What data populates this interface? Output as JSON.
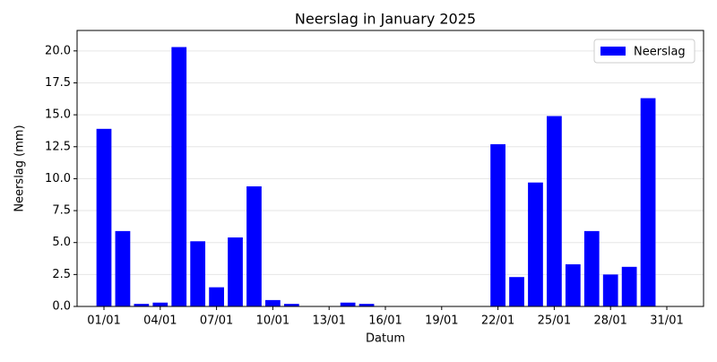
{
  "chart_data": {
    "type": "bar",
    "title": "Neerslag in January 2025",
    "x_label": "Datum",
    "y_label": "Neerslag (mm)",
    "categories": [
      "01/01",
      null,
      null,
      "04/01",
      null,
      null,
      "07/01",
      null,
      null,
      "10/01",
      null,
      null,
      "13/01",
      null,
      null,
      "16/01",
      null,
      null,
      "19/01",
      null,
      null,
      "22/01",
      null,
      null,
      "25/01",
      null,
      null,
      "28/01",
      null,
      null,
      "31/01"
    ],
    "series": [
      {
        "name": "Neerslag",
        "color": "#0000ff",
        "values": [
          13.9,
          5.9,
          0.2,
          0.3,
          20.3,
          5.1,
          1.5,
          5.4,
          9.4,
          0.5,
          0.2,
          0,
          0,
          0.3,
          0.2,
          0,
          0,
          0,
          0,
          0,
          0,
          12.7,
          2.3,
          9.7,
          14.9,
          3.3,
          5.9,
          2.5,
          3.1,
          16.3,
          0
        ]
      }
    ],
    "ylim": [
      0,
      21.6
    ],
    "yticks": [
      {
        "value": 0,
        "label": "0.0"
      },
      2.5,
      {
        "value": 5,
        "label": "5.0"
      },
      7.5,
      {
        "value": 10,
        "label": "10.0"
      },
      12.5,
      {
        "value": 15,
        "label": "15.0"
      },
      17.5,
      {
        "value": 20,
        "label": "20.0"
      }
    ],
    "grid": true,
    "legend": "upper right"
  }
}
